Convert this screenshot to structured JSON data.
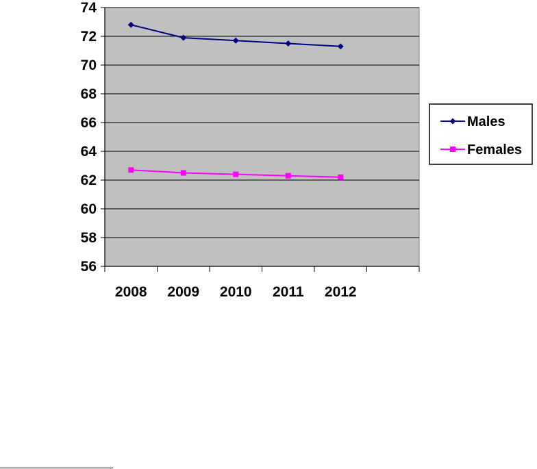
{
  "chart_data": {
    "type": "line",
    "title": "",
    "xlabel": "",
    "ylabel": "",
    "categories": [
      "2008",
      "2009",
      "2010",
      "2011",
      "2012"
    ],
    "ylim": [
      56,
      74
    ],
    "ytick_step": 2,
    "yticks": [
      "56",
      "58",
      "60",
      "62",
      "64",
      "66",
      "68",
      "70",
      "72",
      "74"
    ],
    "grid": true,
    "legend_position": "right",
    "plot_background": "#c0c0c0",
    "series": [
      {
        "name": "Males",
        "values": [
          72.8,
          71.9,
          71.7,
          71.5,
          71.3
        ],
        "color": "#000080",
        "marker": "diamond"
      },
      {
        "name": "Females",
        "values": [
          62.7,
          62.5,
          62.4,
          62.3,
          62.2
        ],
        "color": "#ff00ff",
        "marker": "square"
      }
    ]
  }
}
